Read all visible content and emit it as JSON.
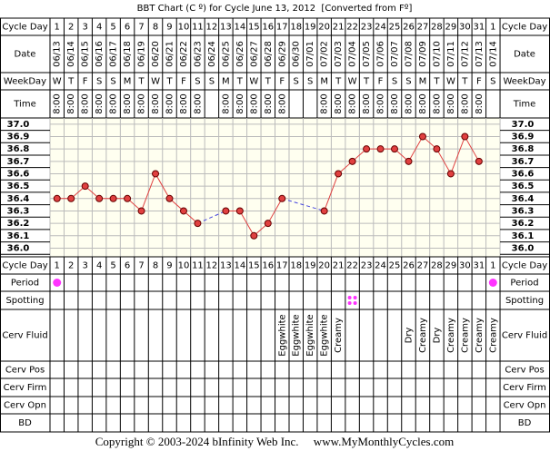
{
  "title": "BBT Chart (C º) for Cycle June 13, 2012  [Converted from Fº]",
  "row_labels": {
    "cycle_day": "Cycle Day",
    "date": "Date",
    "weekday": "WeekDay",
    "time": "Time",
    "period": "Period",
    "spotting": "Spotting",
    "cerv_fluid": "Cerv Fluid",
    "cerv_pos": "Cerv Pos",
    "cerv_firm": "Cerv Firm",
    "cerv_opn": "Cerv Opn",
    "bd": "BD"
  },
  "cycle_days": [
    1,
    2,
    3,
    4,
    5,
    6,
    7,
    8,
    9,
    10,
    11,
    12,
    13,
    14,
    15,
    16,
    17,
    18,
    19,
    20,
    21,
    22,
    23,
    24,
    25,
    26,
    27,
    28,
    29,
    30,
    31,
    1
  ],
  "dates": [
    "06/13",
    "06/14",
    "06/15",
    "06/16",
    "06/17",
    "06/18",
    "06/19",
    "06/20",
    "06/21",
    "06/22",
    "06/23",
    "06/24",
    "06/25",
    "06/26",
    "06/27",
    "06/28",
    "06/29",
    "06/30",
    "07/01",
    "07/02",
    "07/03",
    "07/04",
    "07/05",
    "07/06",
    "07/07",
    "07/08",
    "07/09",
    "07/10",
    "07/11",
    "07/12",
    "07/13",
    "07/14"
  ],
  "weekdays": [
    "W",
    "T",
    "F",
    "S",
    "S",
    "M",
    "T",
    "W",
    "T",
    "F",
    "S",
    "S",
    "M",
    "T",
    "W",
    "T",
    "F",
    "S",
    "S",
    "M",
    "T",
    "W",
    "T",
    "F",
    "S",
    "S",
    "M",
    "T",
    "W",
    "T",
    "F",
    "S"
  ],
  "times": [
    "8:00",
    "8:00",
    "8:00",
    "8:00",
    "8:00",
    "8:00",
    "8:00",
    "8:00",
    "8:00",
    "8:00",
    "8:00",
    null,
    "8:00",
    "8:00",
    "8:00",
    "8:00",
    "8:00",
    null,
    null,
    "8:00",
    "8:00",
    "8:00",
    "8:00",
    "8:00",
    "8:00",
    "8:00",
    "8:00",
    "8:00",
    "8:00",
    "8:00",
    "8:00",
    null
  ],
  "chart_data": {
    "type": "line",
    "values": [
      36.4,
      36.4,
      36.5,
      36.4,
      36.4,
      36.4,
      36.3,
      36.6,
      36.4,
      36.3,
      36.2,
      null,
      36.3,
      36.3,
      36.1,
      36.2,
      36.4,
      null,
      null,
      36.3,
      36.6,
      36.7,
      36.8,
      36.8,
      36.8,
      36.7,
      36.9,
      36.8,
      36.6,
      36.9,
      36.7,
      null
    ],
    "color": "#e04040",
    "gap_color": "#4444dd",
    "ylim": [
      35.93,
      37.05
    ],
    "yticks": [
      {
        "value": 37,
        "label": "37.0"
      },
      36.9,
      36.8,
      36.7,
      36.6,
      36.5,
      36.4,
      36.3,
      36.2,
      36.1,
      {
        "value": 36,
        "label": "36.0"
      }
    ],
    "grid": true
  },
  "period": [
    true,
    false,
    false,
    false,
    false,
    false,
    false,
    false,
    false,
    false,
    false,
    false,
    false,
    false,
    false,
    false,
    false,
    false,
    false,
    false,
    false,
    false,
    false,
    false,
    false,
    false,
    false,
    false,
    false,
    false,
    false,
    true
  ],
  "period_color": "#ff33ff",
  "spotting": [
    false,
    false,
    false,
    false,
    false,
    false,
    false,
    false,
    false,
    false,
    false,
    false,
    false,
    false,
    false,
    false,
    false,
    false,
    false,
    false,
    false,
    true,
    false,
    false,
    false,
    false,
    false,
    false,
    false,
    false,
    false,
    false
  ],
  "cerv_fluid": [
    null,
    null,
    null,
    null,
    null,
    null,
    null,
    null,
    null,
    null,
    null,
    null,
    null,
    null,
    null,
    null,
    "Eggwhite",
    "Eggwhite",
    "Eggwhite",
    "Eggwhite",
    "Creamy",
    null,
    null,
    null,
    null,
    "Dry",
    "Creamy",
    "Dry",
    "Creamy",
    "Creamy",
    "Creamy",
    "Creamy"
  ],
  "copyright": "Copyright © 2003-2024 bInfinity Web Inc.     www.MyMonthlyCycles.com"
}
